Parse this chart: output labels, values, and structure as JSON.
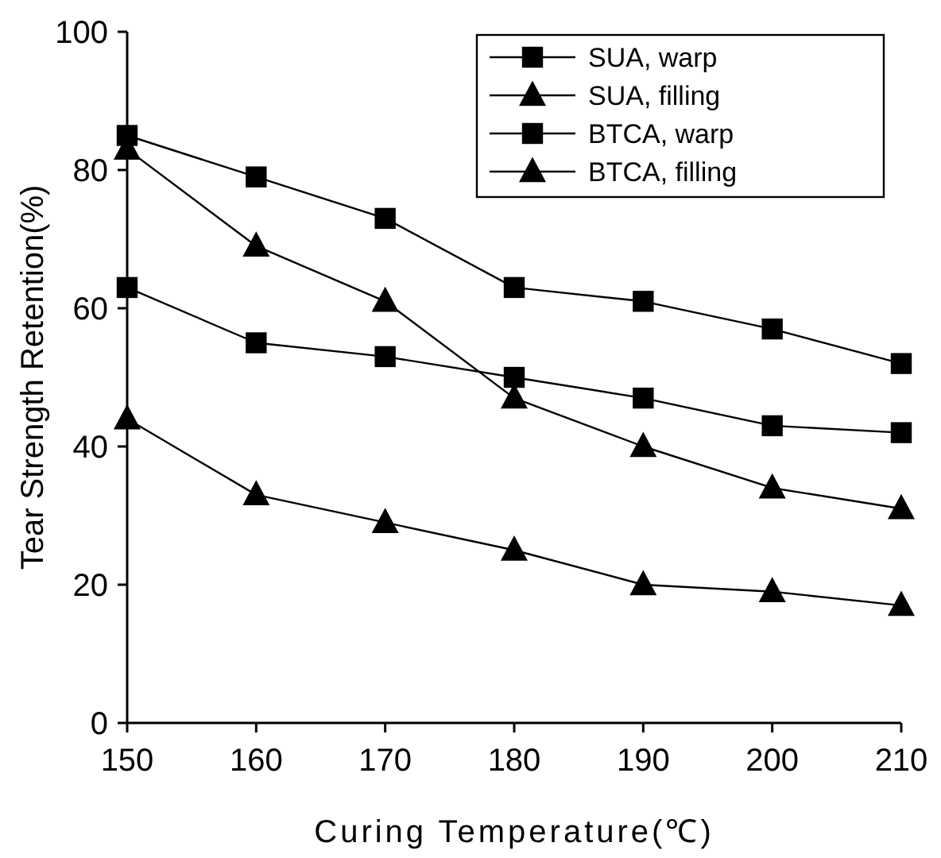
{
  "chart_data": {
    "type": "line",
    "xlabel": "Curing Temperature(℃)",
    "ylabel": "Tear Strength Retention(%)",
    "x": [
      150,
      160,
      170,
      180,
      190,
      200,
      210
    ],
    "xlim": [
      150,
      210
    ],
    "xticks": [
      150,
      160,
      170,
      180,
      190,
      200,
      210
    ],
    "ylim": [
      0,
      100
    ],
    "yticks": [
      0,
      20,
      40,
      60,
      80,
      100
    ],
    "grid": false,
    "legend": "top right",
    "line_style": "solid",
    "series": [
      {
        "name": "SUA, warp",
        "color": "#000000",
        "marker": "square",
        "values": [
          85,
          79,
          73,
          63,
          61,
          57,
          52
        ]
      },
      {
        "name": "SUA, filling",
        "color": "#000000",
        "marker": "triangle",
        "values": [
          83,
          69,
          61,
          47,
          40,
          34,
          31
        ]
      },
      {
        "name": "BTCA, warp",
        "color": "#000000",
        "marker": "square",
        "values": [
          63,
          55,
          53,
          50,
          47,
          43,
          42
        ]
      },
      {
        "name": "BTCA, filling",
        "color": "#000000",
        "marker": "triangle",
        "values": [
          44,
          33,
          29,
          25,
          20,
          19,
          17
        ]
      }
    ]
  }
}
